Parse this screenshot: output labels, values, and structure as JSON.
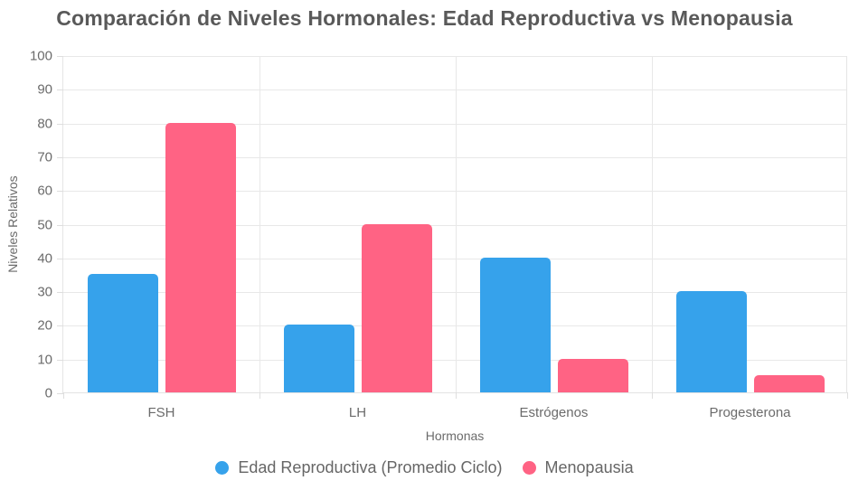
{
  "chart_data": {
    "type": "bar",
    "title": "Comparación de Niveles Hormonales: Edad Reproductiva vs Menopausia",
    "xlabel": "Hormonas",
    "ylabel": "Niveles Relativos",
    "categories": [
      "FSH",
      "LH",
      "Estrógenos",
      "Progesterona"
    ],
    "series": [
      {
        "name": "Edad Reproductiva (Promedio Ciclo)",
        "color": "#36A2EB",
        "values": [
          35,
          20,
          40,
          30
        ]
      },
      {
        "name": "Menopausia",
        "color": "#FF6384",
        "values": [
          80,
          50,
          10,
          5
        ]
      }
    ],
    "ylim": [
      0,
      100
    ],
    "ytick_step": 10,
    "grid": true,
    "legend_position": "bottom"
  },
  "colors": {
    "series_blue": "#36A2EB",
    "series_pink": "#FF6384",
    "gridline": "#e8e8e8",
    "text_title": "#595959",
    "text_axis": "#6b6b6b",
    "text_legend": "#666666",
    "background": "#ffffff"
  }
}
